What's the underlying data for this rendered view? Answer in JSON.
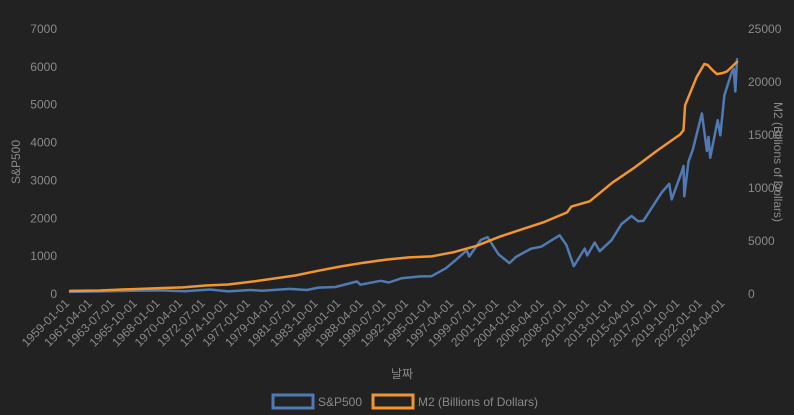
{
  "chart_data": {
    "type": "line",
    "xlabel": "날짜",
    "ylabel_left": "S&P500",
    "ylabel_right": "M2 (Billions of Dollars)",
    "ylim_left": [
      0,
      7000
    ],
    "ylim_right": [
      0,
      25000
    ],
    "yticks_left": [
      "0",
      "1000",
      "2000",
      "3000",
      "4000",
      "5000",
      "6000",
      "7000"
    ],
    "yticks_right": [
      "0",
      "5000",
      "10000",
      "15000",
      "20000",
      "25000"
    ],
    "x_ticks": [
      "1959-01-01",
      "1961-04-01",
      "1963-07-01",
      "1965-10-01",
      "1968-01-01",
      "1970-04-01",
      "1972-07-01",
      "1974-10-01",
      "1977-01-01",
      "1979-04-01",
      "1981-07-01",
      "1983-10-01",
      "1986-01-01",
      "1988-04-01",
      "1990-07-01",
      "1992-10-01",
      "1995-01-01",
      "1997-04-01",
      "1999-07-01",
      "2001-10-01",
      "2004-01-01",
      "2006-04-01",
      "2008-07-01",
      "2010-10-01",
      "2013-01-01",
      "2015-04-01",
      "2017-07-01",
      "2019-10-01",
      "2022-01-01",
      "2024-04-01"
    ],
    "x_range": [
      "1959-01-01",
      "2025-06-01"
    ],
    "legend_position": "bottom-center",
    "grid": false,
    "series": [
      {
        "name": "S&P500",
        "axis": "left",
        "color": "#4f7ab3",
        "points": [
          [
            "1959-01-01",
            55
          ],
          [
            "1962-01-01",
            68
          ],
          [
            "1965-01-01",
            85
          ],
          [
            "1968-01-01",
            95
          ],
          [
            "1970-06-01",
            75
          ],
          [
            "1972-12-01",
            118
          ],
          [
            "1974-10-01",
            70
          ],
          [
            "1976-12-01",
            105
          ],
          [
            "1978-03-01",
            88
          ],
          [
            "1980-11-01",
            135
          ],
          [
            "1982-08-01",
            105
          ],
          [
            "1983-10-01",
            168
          ],
          [
            "1985-06-01",
            185
          ],
          [
            "1987-08-01",
            330
          ],
          [
            "1987-12-01",
            245
          ],
          [
            "1989-12-01",
            350
          ],
          [
            "1990-10-01",
            305
          ],
          [
            "1992-01-01",
            415
          ],
          [
            "1993-12-01",
            465
          ],
          [
            "1995-01-01",
            470
          ],
          [
            "1996-06-01",
            680
          ],
          [
            "1997-06-01",
            900
          ],
          [
            "1998-07-01",
            1150
          ],
          [
            "1998-10-01",
            990
          ],
          [
            "1999-12-01",
            1430
          ],
          [
            "2000-08-01",
            1500
          ],
          [
            "2001-09-01",
            1050
          ],
          [
            "2002-10-01",
            815
          ],
          [
            "2003-06-01",
            980
          ],
          [
            "2004-12-01",
            1200
          ],
          [
            "2005-12-01",
            1250
          ],
          [
            "2007-10-01",
            1550
          ],
          [
            "2008-06-01",
            1300
          ],
          [
            "2009-03-01",
            735
          ],
          [
            "2010-04-01",
            1200
          ],
          [
            "2010-07-01",
            1020
          ],
          [
            "2011-04-01",
            1360
          ],
          [
            "2011-10-01",
            1130
          ],
          [
            "2012-12-01",
            1420
          ],
          [
            "2013-12-01",
            1850
          ],
          [
            "2014-12-01",
            2060
          ],
          [
            "2015-08-01",
            1920
          ],
          [
            "2016-02-01",
            1930
          ],
          [
            "2017-12-01",
            2680
          ],
          [
            "2018-09-01",
            2910
          ],
          [
            "2018-12-01",
            2500
          ],
          [
            "2019-12-01",
            3230
          ],
          [
            "2020-02-01",
            3380
          ],
          [
            "2020-03-01",
            2580
          ],
          [
            "2020-08-01",
            3500
          ],
          [
            "2021-01-01",
            3800
          ],
          [
            "2021-12-01",
            4770
          ],
          [
            "2022-06-01",
            3780
          ],
          [
            "2022-08-01",
            4150
          ],
          [
            "2022-10-01",
            3600
          ],
          [
            "2023-07-01",
            4590
          ],
          [
            "2023-10-01",
            4190
          ],
          [
            "2024-03-01",
            5250
          ],
          [
            "2024-12-01",
            5880
          ],
          [
            "2025-02-01",
            5950
          ],
          [
            "2025-04-01",
            5350
          ],
          [
            "2025-06-01",
            6200
          ]
        ]
      },
      {
        "name": "M2 (Billions of Dollars)",
        "axis": "right",
        "color": "#f0952f",
        "points": [
          [
            "1959-01-01",
            290
          ],
          [
            "1962-01-01",
            330
          ],
          [
            "1965-01-01",
            450
          ],
          [
            "1968-01-01",
            560
          ],
          [
            "1970-04-01",
            620
          ],
          [
            "1972-07-01",
            800
          ],
          [
            "1974-10-01",
            900
          ],
          [
            "1977-01-01",
            1150
          ],
          [
            "1979-04-01",
            1450
          ],
          [
            "1981-07-01",
            1750
          ],
          [
            "1983-10-01",
            2200
          ],
          [
            "1986-01-01",
            2600
          ],
          [
            "1988-04-01",
            2950
          ],
          [
            "1990-07-01",
            3250
          ],
          [
            "1992-10-01",
            3450
          ],
          [
            "1995-01-01",
            3550
          ],
          [
            "1997-04-01",
            3950
          ],
          [
            "1999-07-01",
            4550
          ],
          [
            "2001-10-01",
            5400
          ],
          [
            "2004-01-01",
            6100
          ],
          [
            "2006-04-01",
            6800
          ],
          [
            "2008-07-01",
            7700
          ],
          [
            "2008-12-01",
            8250
          ],
          [
            "2010-10-01",
            8750
          ],
          [
            "2013-01-01",
            10500
          ],
          [
            "2015-04-01",
            11950
          ],
          [
            "2017-07-01",
            13550
          ],
          [
            "2019-10-01",
            15050
          ],
          [
            "2020-02-01",
            15450
          ],
          [
            "2020-04-01",
            17800
          ],
          [
            "2020-06-01",
            18200
          ],
          [
            "2021-06-01",
            20500
          ],
          [
            "2022-03-01",
            21700
          ],
          [
            "2022-07-01",
            21600
          ],
          [
            "2023-01-01",
            21100
          ],
          [
            "2023-06-01",
            20750
          ],
          [
            "2024-01-01",
            20850
          ],
          [
            "2024-06-01",
            21000
          ],
          [
            "2024-12-01",
            21450
          ],
          [
            "2025-06-01",
            21900
          ]
        ]
      }
    ]
  }
}
